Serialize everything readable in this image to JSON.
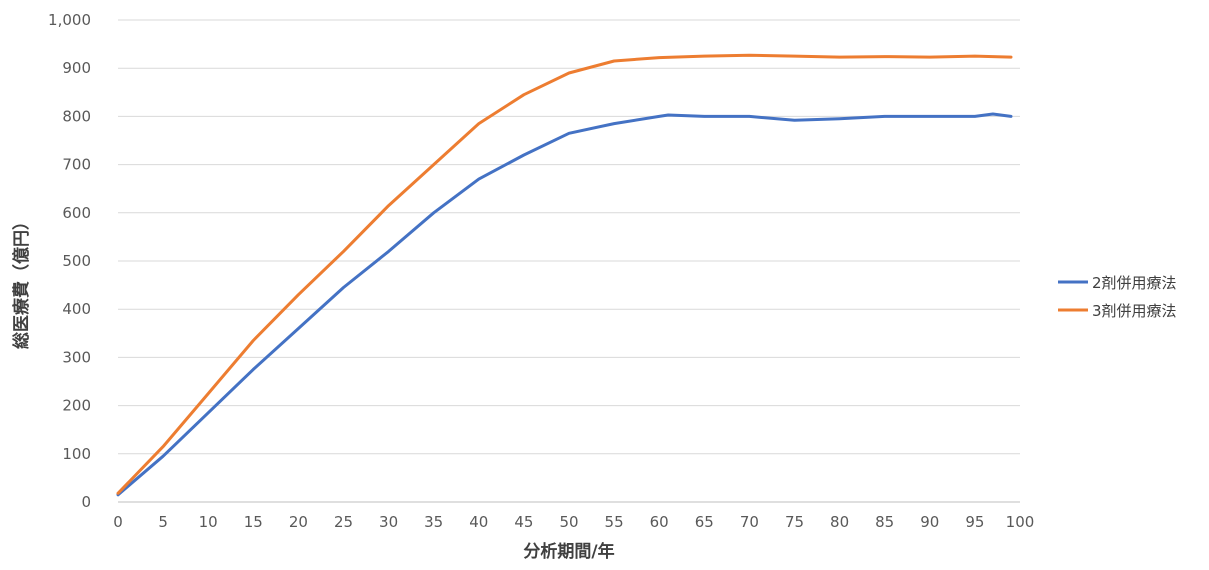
{
  "chart_data": {
    "type": "line",
    "title": "",
    "xlabel": "分析期間/年",
    "ylabel": "総医療費（億円）",
    "xlim": [
      0,
      100
    ],
    "ylim": [
      0,
      1000
    ],
    "x_ticks": [
      0,
      5,
      10,
      15,
      20,
      25,
      30,
      35,
      40,
      45,
      50,
      55,
      60,
      65,
      70,
      75,
      80,
      85,
      90,
      95,
      100
    ],
    "x_tick_labels": [
      "0",
      "5",
      "10",
      "15",
      "20",
      "25",
      "30",
      "35",
      "40",
      "45",
      "50",
      "55",
      "60",
      "65",
      "70",
      "75",
      "80",
      "85",
      "90",
      "95",
      "100"
    ],
    "y_ticks": [
      0,
      100,
      200,
      300,
      400,
      500,
      600,
      700,
      800,
      900,
      1000
    ],
    "y_tick_labels": [
      "0",
      "100",
      "200",
      "300",
      "400",
      "500",
      "600",
      "700",
      "800",
      "900",
      "1,000"
    ],
    "grid": "horizontal",
    "legend_position": "right",
    "series": [
      {
        "name": "2剤併用療法",
        "color": "#4472C4",
        "x": [
          0,
          5,
          10,
          15,
          20,
          25,
          30,
          35,
          40,
          45,
          50,
          55,
          60,
          61,
          65,
          70,
          75,
          80,
          85,
          90,
          95,
          97,
          99
        ],
        "values": [
          15,
          95,
          185,
          275,
          360,
          445,
          520,
          600,
          670,
          720,
          765,
          785,
          800,
          803,
          800,
          800,
          792,
          795,
          800,
          800,
          800,
          805,
          800
        ]
      },
      {
        "name": "3剤併用療法",
        "color": "#ED7D31",
        "x": [
          0,
          5,
          10,
          15,
          20,
          25,
          30,
          35,
          40,
          45,
          50,
          55,
          60,
          65,
          70,
          75,
          80,
          85,
          90,
          95,
          99
        ],
        "values": [
          18,
          115,
          225,
          335,
          430,
          520,
          615,
          700,
          785,
          845,
          890,
          915,
          922,
          925,
          927,
          925,
          923,
          924,
          923,
          925,
          923
        ]
      }
    ]
  }
}
